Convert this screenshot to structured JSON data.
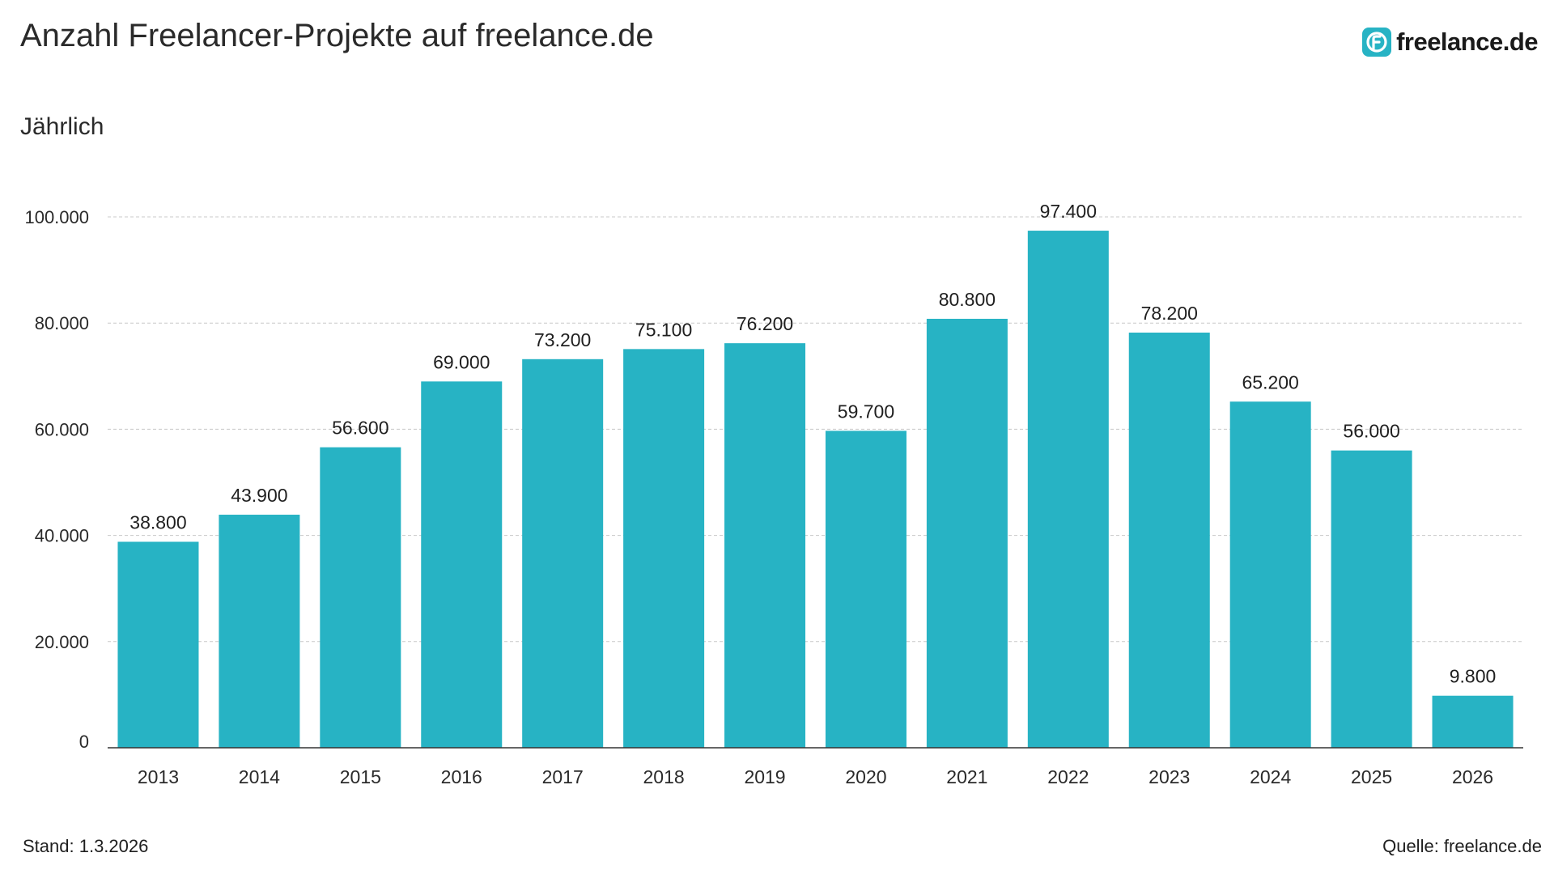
{
  "header": {
    "title": "Anzahl Freelancer-Projekte auf freelance.de",
    "subtitle": "Jährlich",
    "brand_name": "freelance.de",
    "brand_icon": "freelance-logo-icon"
  },
  "footer": {
    "stand": "Stand: 1.3.2026",
    "source": "Quelle: freelance.de"
  },
  "colors": {
    "bar": "#27b3c4",
    "grid": "#c8c8c8",
    "axis": "#333333"
  },
  "chart_data": {
    "type": "bar",
    "title": "Anzahl Freelancer-Projekte auf freelance.de",
    "subtitle": "Jährlich",
    "xlabel": "",
    "ylabel": "",
    "ylim": [
      0,
      100000
    ],
    "grid": true,
    "legend": "none",
    "categories": [
      "2013",
      "2014",
      "2015",
      "2016",
      "2017",
      "2018",
      "2019",
      "2020",
      "2021",
      "2022",
      "2023",
      "2024",
      "2025",
      "2026"
    ],
    "values": [
      38800,
      43900,
      56600,
      69000,
      73200,
      75100,
      76200,
      59700,
      80800,
      97400,
      78200,
      65200,
      56000,
      9800
    ],
    "value_labels": [
      "38.800",
      "43.900",
      "56.600",
      "69.000",
      "73.200",
      "75.100",
      "76.200",
      "59.700",
      "80.800",
      "97.400",
      "78.200",
      "65.200",
      "56.000",
      "9.800"
    ],
    "y_ticks": [
      0,
      20000,
      40000,
      60000,
      80000,
      100000
    ],
    "y_tick_labels": [
      "0",
      "20.000",
      "40.000",
      "60.000",
      "80.000",
      "100.000"
    ]
  }
}
